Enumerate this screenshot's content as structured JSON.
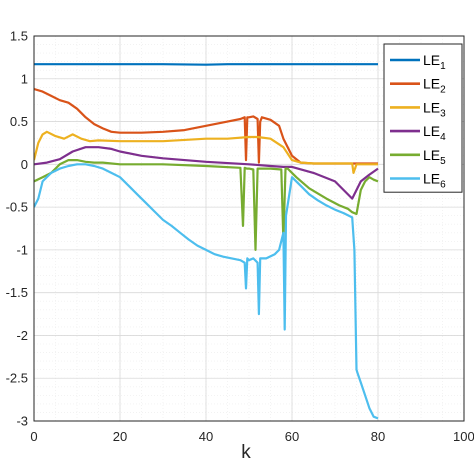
{
  "chart_data": {
    "type": "line",
    "title": "",
    "xlabel": "k",
    "ylabel": "",
    "xlim": [
      0,
      100
    ],
    "ylim": [
      -3,
      1.5
    ],
    "xticks": [
      "0",
      "20",
      "40",
      "60",
      "80",
      "100"
    ],
    "yticks": [
      "1.5",
      "1",
      "0.5",
      "0",
      "-0.5",
      "-1",
      "-1.5",
      "-2",
      "-2.5",
      "-3"
    ],
    "grid": true,
    "minor_grid": true,
    "legend_position": "top-right",
    "series": [
      {
        "name": "LE",
        "sub": "1",
        "color": "#0072BD",
        "x": [
          0,
          10,
          20,
          30,
          40,
          45,
          50,
          60,
          70,
          80
        ],
        "y": [
          1.17,
          1.17,
          1.17,
          1.17,
          1.165,
          1.17,
          1.17,
          1.17,
          1.17,
          1.17
        ]
      },
      {
        "name": "LE",
        "sub": "2",
        "color": "#D95319",
        "x": [
          0,
          2,
          4,
          6,
          8,
          10,
          12,
          14,
          16,
          18,
          20,
          25,
          30,
          35,
          40,
          45,
          48,
          49,
          49.3,
          49.6,
          50,
          51,
          52,
          52.3,
          52.6,
          53,
          55,
          57,
          58,
          60,
          62,
          65,
          70,
          75,
          80
        ],
        "y": [
          0.88,
          0.85,
          0.8,
          0.75,
          0.72,
          0.65,
          0.55,
          0.47,
          0.42,
          0.38,
          0.37,
          0.37,
          0.38,
          0.4,
          0.45,
          0.5,
          0.53,
          0.55,
          0.05,
          0.55,
          0.55,
          0.56,
          0.53,
          0.02,
          0.5,
          0.55,
          0.52,
          0.45,
          0.3,
          0.1,
          0.02,
          0.01,
          0.01,
          0.01,
          0.01
        ]
      },
      {
        "name": "LE",
        "sub": "3",
        "color": "#EDB120",
        "x": [
          0,
          1,
          2,
          3,
          5,
          7,
          9,
          11,
          13,
          15,
          20,
          30,
          40,
          45,
          50,
          52,
          55,
          58,
          60,
          62,
          65,
          70,
          73,
          74,
          74.3,
          75,
          80
        ],
        "y": [
          0.05,
          0.25,
          0.35,
          0.38,
          0.33,
          0.3,
          0.35,
          0.3,
          0.27,
          0.28,
          0.27,
          0.27,
          0.3,
          0.3,
          0.32,
          0.32,
          0.3,
          0.2,
          0.05,
          0.02,
          0.01,
          0.01,
          0.01,
          0.01,
          -0.1,
          0.0,
          0.0
        ]
      },
      {
        "name": "LE",
        "sub": "4",
        "color": "#7E2F8E",
        "x": [
          0,
          3,
          6,
          9,
          12,
          15,
          18,
          20,
          25,
          30,
          40,
          50,
          55,
          58,
          60,
          65,
          70,
          72,
          74,
          76,
          78,
          80
        ],
        "y": [
          0.0,
          0.02,
          0.06,
          0.15,
          0.2,
          0.2,
          0.18,
          0.15,
          0.1,
          0.07,
          0.03,
          0.0,
          -0.02,
          -0.03,
          -0.03,
          -0.1,
          -0.2,
          -0.3,
          -0.4,
          -0.2,
          -0.12,
          -0.05
        ]
      },
      {
        "name": "LE",
        "sub": "5",
        "color": "#77AC30",
        "x": [
          0,
          2,
          4,
          6,
          8,
          10,
          12,
          14,
          16,
          20,
          30,
          40,
          48,
          48.6,
          49,
          49.5,
          50,
          51,
          51.5,
          52,
          53,
          55,
          57.5,
          58,
          58.5,
          59,
          61,
          64,
          68,
          71,
          73,
          74,
          75,
          76,
          77,
          78,
          79,
          80
        ],
        "y": [
          -0.2,
          -0.15,
          -0.1,
          0.0,
          0.05,
          0.05,
          0.03,
          0.02,
          0.02,
          0.0,
          0.0,
          -0.02,
          -0.04,
          -0.72,
          -0.04,
          -0.05,
          -0.05,
          -0.06,
          -1.0,
          -0.05,
          -0.05,
          -0.05,
          -0.06,
          -0.9,
          -0.05,
          -0.05,
          -0.15,
          -0.28,
          -0.4,
          -0.48,
          -0.52,
          -0.56,
          -0.58,
          -0.3,
          -0.2,
          -0.15,
          -0.18,
          -0.2
        ]
      },
      {
        "name": "LE",
        "sub": "6",
        "color": "#4DBEEE",
        "x": [
          0,
          1,
          2,
          4,
          6,
          8,
          10,
          12,
          14,
          16,
          18,
          20,
          22,
          24,
          26,
          28,
          30,
          32,
          34,
          36,
          38,
          40,
          42,
          44,
          46,
          48,
          49,
          49.3,
          49.6,
          50,
          51,
          52,
          52.3,
          52.6,
          54,
          56,
          57,
          58,
          58.3,
          58.6,
          60,
          62,
          64,
          66,
          68,
          70,
          72,
          74,
          74.5,
          75,
          75.3,
          76,
          77,
          78,
          79,
          80
        ],
        "y": [
          -0.5,
          -0.4,
          -0.2,
          -0.1,
          -0.05,
          -0.02,
          0.0,
          0.0,
          -0.02,
          -0.05,
          -0.1,
          -0.15,
          -0.25,
          -0.35,
          -0.45,
          -0.55,
          -0.65,
          -0.72,
          -0.8,
          -0.88,
          -0.95,
          -1.0,
          -1.05,
          -1.08,
          -1.1,
          -1.12,
          -1.15,
          -1.45,
          -1.1,
          -1.12,
          -1.1,
          -1.15,
          -1.75,
          -1.1,
          -1.1,
          -1.05,
          -1.0,
          -0.8,
          -1.93,
          -0.6,
          -0.15,
          -0.25,
          -0.35,
          -0.42,
          -0.48,
          -0.53,
          -0.57,
          -0.62,
          -1.0,
          -2.4,
          -2.45,
          -2.55,
          -2.7,
          -2.85,
          -2.95,
          -2.97
        ]
      }
    ]
  }
}
